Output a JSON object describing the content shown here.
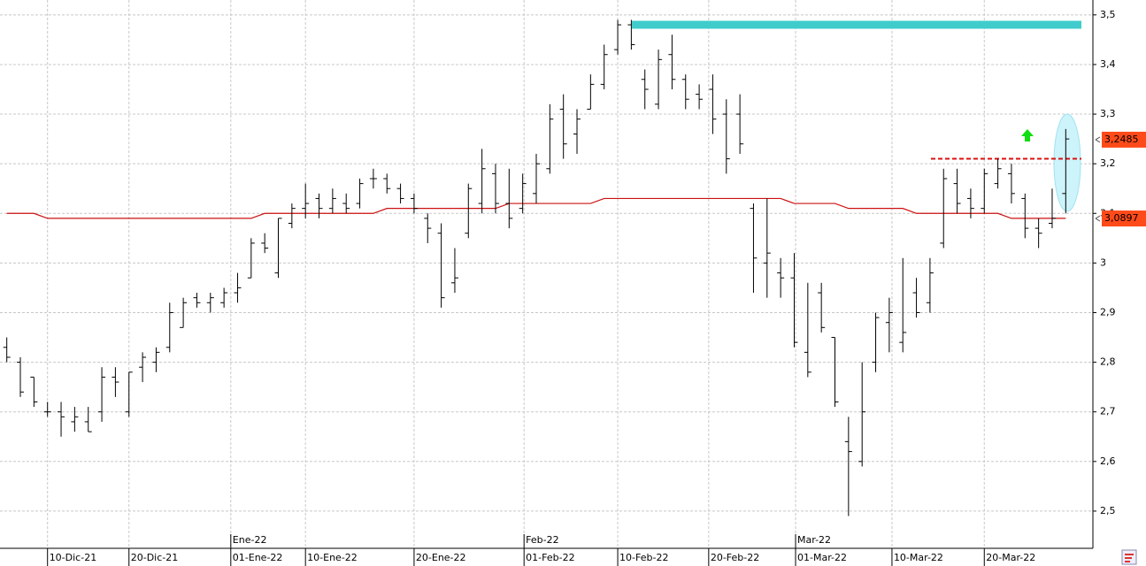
{
  "chart_data": {
    "type": "ohlc",
    "xlim": [
      -0.5,
      80
    ],
    "ylim": [
      2.425,
      3.53
    ],
    "grid": true,
    "yticks": [
      {
        "value": 2.5,
        "label": "2,5"
      },
      {
        "value": 2.6,
        "label": "2,6"
      },
      {
        "value": 2.7,
        "label": "2,7"
      },
      {
        "value": 2.8,
        "label": "2,8"
      },
      {
        "value": 2.9,
        "label": "2,9"
      },
      3,
      {
        "value": 3.1,
        "label": "3,1"
      },
      {
        "value": 3.2,
        "label": "3,2"
      },
      {
        "value": 3.3,
        "label": "3,3"
      },
      {
        "value": 3.4,
        "label": "3,4"
      },
      {
        "value": 3.5,
        "label": "3,5"
      }
    ],
    "xticks": [
      {
        "value": 3,
        "label": "10-Dic-21"
      },
      {
        "value": 9,
        "label": "20-Dic-21"
      },
      {
        "value": 16.5,
        "label": "01-Ene-22"
      },
      {
        "value": 22,
        "label": "10-Ene-22"
      },
      {
        "value": 30,
        "label": "20-Ene-22"
      },
      {
        "value": 38.1,
        "label": "01-Feb-22"
      },
      {
        "value": 45,
        "label": "10-Feb-22"
      },
      {
        "value": 51.7,
        "label": "20-Feb-22"
      },
      {
        "value": 58.1,
        "label": "01-Mar-22"
      },
      {
        "value": 65.2,
        "label": "10-Mar-22"
      },
      {
        "value": 72,
        "label": "20-Mar-22"
      }
    ],
    "period_ticks": [
      {
        "value": 16.5,
        "label": "Ene-22"
      },
      {
        "value": 38.1,
        "label": "Feb-22"
      },
      {
        "value": 58.1,
        "label": "Mar-22"
      }
    ],
    "ohlc": {
      "color": "#000000",
      "open": [
        2.83,
        2.8,
        2.77,
        2.7,
        2.7,
        2.68,
        2.68,
        2.7,
        2.77,
        2.7,
        2.79,
        2.8,
        2.83,
        2.87,
        2.93,
        2.92,
        2.92,
        2.94,
        2.97,
        3.04,
        2.98,
        3.08,
        3.11,
        3.13,
        3.11,
        3.12,
        3.12,
        3.17,
        3.17,
        3.15,
        3.13,
        3.09,
        3.06,
        2.96,
        3.06,
        3.12,
        3.18,
        3.12,
        3.11,
        3.14,
        3.19,
        3.31,
        3.26,
        3.31,
        3.36,
        3.43,
        3.48,
        3.37,
        3.32,
        3.42,
        3.37,
        3.34,
        3.35,
        3.3,
        3.3,
        3.11,
        3.0,
        2.98,
        2.97,
        2.82,
        2.94,
        2.85,
        2.64,
        2.6,
        2.8,
        2.88,
        2.84,
        2.94,
        2.92,
        3.04,
        3.16,
        3.13,
        3.11,
        3.16,
        3.18,
        3.13,
        3.07,
        3.08,
        3.14
      ],
      "high": [
        2.85,
        2.81,
        2.77,
        2.72,
        2.72,
        2.71,
        2.71,
        2.79,
        2.79,
        2.78,
        2.82,
        2.83,
        2.92,
        2.93,
        2.94,
        2.94,
        2.95,
        2.98,
        3.05,
        3.06,
        3.09,
        3.12,
        3.16,
        3.14,
        3.15,
        3.14,
        3.17,
        3.19,
        3.18,
        3.16,
        3.14,
        3.1,
        3.08,
        3.03,
        3.16,
        3.23,
        3.2,
        3.19,
        3.18,
        3.22,
        3.32,
        3.34,
        3.31,
        3.38,
        3.44,
        3.49,
        3.49,
        3.39,
        3.43,
        3.46,
        3.38,
        3.36,
        3.38,
        3.33,
        3.34,
        3.12,
        3.13,
        3.01,
        3.02,
        2.96,
        2.96,
        2.85,
        2.69,
        2.8,
        2.9,
        2.93,
        3.01,
        2.97,
        3.01,
        3.19,
        3.19,
        3.15,
        3.19,
        3.21,
        3.2,
        3.14,
        3.09,
        3.15,
        3.27
      ],
      "low": [
        2.8,
        2.73,
        2.71,
        2.69,
        2.65,
        2.66,
        2.66,
        2.68,
        2.73,
        2.69,
        2.76,
        2.78,
        2.82,
        2.87,
        2.91,
        2.9,
        2.91,
        2.92,
        2.97,
        3.02,
        2.97,
        3.07,
        3.09,
        3.09,
        3.1,
        3.1,
        3.11,
        3.15,
        3.14,
        3.12,
        3.1,
        3.04,
        2.91,
        2.94,
        3.05,
        3.1,
        3.1,
        3.07,
        3.1,
        3.12,
        3.18,
        3.21,
        3.22,
        3.31,
        3.35,
        3.42,
        3.43,
        3.31,
        3.31,
        3.35,
        3.31,
        3.31,
        3.26,
        3.18,
        3.22,
        2.94,
        2.93,
        2.93,
        2.83,
        2.77,
        2.86,
        2.71,
        2.49,
        2.59,
        2.78,
        2.82,
        2.82,
        2.89,
        2.9,
        3.03,
        3.1,
        3.09,
        3.1,
        3.15,
        3.12,
        3.05,
        3.03,
        3.07,
        3.1
      ],
      "close": [
        2.81,
        2.74,
        2.72,
        2.7,
        2.69,
        2.69,
        2.66,
        2.77,
        2.76,
        2.78,
        2.81,
        2.82,
        2.9,
        2.92,
        2.92,
        2.93,
        2.94,
        2.95,
        3.04,
        3.03,
        3.09,
        3.11,
        3.12,
        3.11,
        3.13,
        3.11,
        3.16,
        3.17,
        3.15,
        3.13,
        3.11,
        3.07,
        2.93,
        2.97,
        3.15,
        3.19,
        3.12,
        3.09,
        3.16,
        3.2,
        3.29,
        3.24,
        3.29,
        3.36,
        3.42,
        3.48,
        3.44,
        3.35,
        3.41,
        3.37,
        3.33,
        3.33,
        3.29,
        3.21,
        3.24,
        3.01,
        3.02,
        2.97,
        2.84,
        2.78,
        2.87,
        2.72,
        2.62,
        2.7,
        2.89,
        2.9,
        2.86,
        2.9,
        2.98,
        3.17,
        3.12,
        3.11,
        3.18,
        3.19,
        3.14,
        3.07,
        3.06,
        3.09,
        3.25
      ]
    },
    "moving_average": {
      "color": "#cc1010",
      "values": [
        3.1,
        3.1,
        3.1,
        3.09,
        3.09,
        3.09,
        3.09,
        3.09,
        3.09,
        3.09,
        3.09,
        3.09,
        3.09,
        3.09,
        3.09,
        3.09,
        3.09,
        3.09,
        3.09,
        3.1,
        3.1,
        3.1,
        3.1,
        3.1,
        3.1,
        3.1,
        3.1,
        3.1,
        3.11,
        3.11,
        3.11,
        3.11,
        3.11,
        3.11,
        3.11,
        3.11,
        3.11,
        3.12,
        3.12,
        3.12,
        3.12,
        3.12,
        3.12,
        3.12,
        3.13,
        3.13,
        3.13,
        3.13,
        3.13,
        3.13,
        3.13,
        3.13,
        3.13,
        3.13,
        3.13,
        3.13,
        3.13,
        3.13,
        3.12,
        3.12,
        3.12,
        3.12,
        3.11,
        3.11,
        3.11,
        3.11,
        3.11,
        3.1,
        3.1,
        3.1,
        3.1,
        3.1,
        3.1,
        3.1,
        3.09,
        3.09,
        3.09,
        3.09,
        3.09
      ]
    },
    "level_lines": [
      {
        "value": 3.48,
        "color": "#40cccc"
      },
      {
        "value": 3.21,
        "color": "#dd1010",
        "dashed": true
      }
    ],
    "price_labels": [
      {
        "value": 3.2485,
        "label": "3,2485",
        "color": "#ff4a1a"
      },
      {
        "value": 3.0897,
        "label": "3,0897",
        "color": "#ff4a1a"
      }
    ]
  }
}
